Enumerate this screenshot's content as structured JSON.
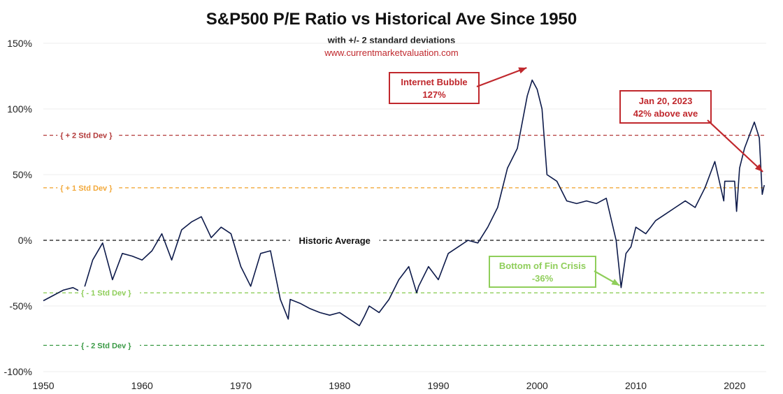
{
  "chart_data": {
    "type": "line",
    "title": "S&P500 P/E Ratio vs Historical Ave Since 1950",
    "subtitle": "with +/- 2 standard deviations",
    "source": "www.currentmarketvaluation.com",
    "xlim": [
      1950,
      2023.2
    ],
    "ylim": [
      -100,
      150
    ],
    "x_ticks": [
      1950,
      1960,
      1970,
      1980,
      1990,
      2000,
      2010,
      2020
    ],
    "y_ticks": [
      -100,
      -50,
      0,
      50,
      100,
      150
    ],
    "y_tick_labels": [
      "-100%",
      "-50%",
      "0%",
      "50%",
      "100%",
      "150%"
    ],
    "grid": "horizontal",
    "reference_lines": [
      {
        "label": "+ 2 Std Dev",
        "value": 80,
        "color": "#b33a3a"
      },
      {
        "label": "+ 1 Std Dev",
        "value": 40,
        "color": "#f2a93b"
      },
      {
        "label": "Historic Average",
        "value": 0,
        "color": "#111111"
      },
      {
        "label": "- 1 Std Dev",
        "value": -40,
        "color": "#8fce5a"
      },
      {
        "label": "- 2 Std Dev",
        "value": -80,
        "color": "#3a9a45"
      }
    ],
    "annotations": [
      {
        "line1": "Internet Bubble",
        "line2": "127%",
        "color": "#c0282d",
        "x": 2000,
        "y": 125
      },
      {
        "line1": "Jan 20, 2023",
        "line2": "42% above ave",
        "color": "#c0282d",
        "x": 2023,
        "y": 49
      },
      {
        "line1": "Bottom of Fin Crisis",
        "line2": "-36%",
        "color": "#8fce5a",
        "x": 2008.5,
        "y": -36
      }
    ],
    "series": [
      {
        "color": "#0d1a4a",
        "x": [
          1950,
          1951,
          1952,
          1953,
          1954,
          1955,
          1956,
          1957,
          1958,
          1959,
          1960,
          1961,
          1962,
          1963,
          1964,
          1965,
          1966,
          1967,
          1968,
          1969,
          1970,
          1971,
          1972,
          1973,
          1974,
          1974.8,
          1975,
          1976,
          1977,
          1978,
          1979,
          1980,
          1981,
          1982,
          1982.5,
          1983,
          1984,
          1985,
          1986,
          1987,
          1987.8,
          1988,
          1989,
          1990,
          1991,
          1992,
          1993,
          1994,
          1995,
          1996,
          1997,
          1998,
          1999,
          1999.5,
          2000,
          2000.5,
          2001,
          2002,
          2003,
          2004,
          2005,
          2006,
          2007,
          2008,
          2008.5,
          2009,
          2009.5,
          2010,
          2011,
          2012,
          2013,
          2014,
          2015,
          2016,
          2017,
          2018,
          2018.9,
          2019,
          2020,
          2020.2,
          2020.5,
          2021,
          2022,
          2022.5,
          2022.8,
          2023
        ],
        "values": [
          -46,
          -42,
          -38,
          -36,
          -40,
          -15,
          -2,
          -30,
          -10,
          -12,
          -15,
          -8,
          5,
          -15,
          8,
          14,
          18,
          2,
          10,
          5,
          -20,
          -35,
          -10,
          -8,
          -45,
          -60,
          -45,
          -48,
          -52,
          -55,
          -57,
          -55,
          -60,
          -65,
          -58,
          -50,
          -55,
          -45,
          -30,
          -20,
          -40,
          -35,
          -20,
          -30,
          -10,
          -5,
          0,
          -2,
          10,
          25,
          55,
          70,
          110,
          122,
          115,
          100,
          50,
          45,
          30,
          28,
          30,
          28,
          32,
          0,
          -36,
          -10,
          -5,
          10,
          5,
          15,
          20,
          25,
          30,
          25,
          40,
          60,
          30,
          45,
          45,
          22,
          55,
          70,
          90,
          78,
          35,
          42
        ]
      }
    ]
  }
}
